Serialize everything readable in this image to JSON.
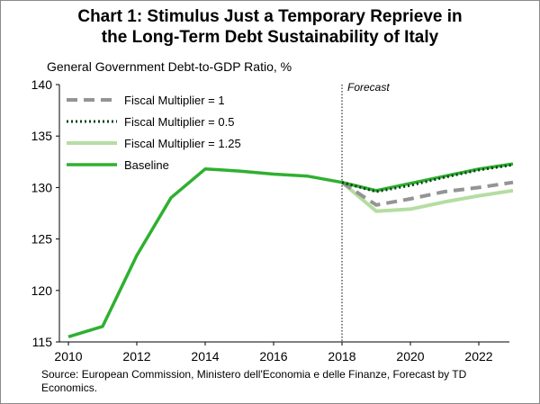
{
  "chart_data": {
    "type": "line",
    "title_line1": "Chart 1: Stimulus Just a Temporary Reprieve in",
    "title_line2": "the Long-Term Debt Sustainability of Italy",
    "ylabel": "General Government Debt-to-GDP Ratio, %",
    "xlabel": "",
    "ylim": [
      115,
      140
    ],
    "xlim": [
      2010,
      2023
    ],
    "yticks": [
      "115",
      "120",
      "125",
      "130",
      "135",
      "140"
    ],
    "xticks": [
      "2010",
      "2012",
      "2014",
      "2016",
      "2018",
      "2020",
      "2022"
    ],
    "grid": false,
    "legend_placement": "top-left",
    "annotation": {
      "label": "Forecast",
      "x": 2018
    },
    "series": [
      {
        "name": "Fiscal Multiplier = 1",
        "color": "#949494",
        "style": "dashed",
        "x": [
          2018,
          2019,
          2020,
          2021,
          2022,
          2023
        ],
        "values": [
          130.5,
          128.3,
          128.9,
          129.6,
          130.0,
          130.5
        ]
      },
      {
        "name": "Fiscal Multiplier = 0.5",
        "color": "#0d3f1d",
        "style": "dotted",
        "x": [
          2018,
          2019,
          2020,
          2021,
          2022,
          2023
        ],
        "values": [
          130.5,
          129.6,
          130.2,
          131.0,
          131.7,
          132.2
        ]
      },
      {
        "name": "Fiscal Multiplier = 1.25",
        "color": "#b5dda2",
        "style": "solid",
        "x": [
          2018,
          2019,
          2020,
          2021,
          2022,
          2023
        ],
        "values": [
          130.5,
          127.7,
          127.9,
          128.6,
          129.2,
          129.7
        ]
      },
      {
        "name": "Baseline",
        "color": "#2fb02f",
        "style": "solid",
        "x": [
          2010,
          2011,
          2012,
          2013,
          2014,
          2015,
          2016,
          2017,
          2018,
          2019,
          2020,
          2021,
          2022,
          2023
        ],
        "values": [
          115.5,
          116.5,
          123.4,
          129.0,
          131.8,
          131.6,
          131.3,
          131.1,
          130.5,
          129.7,
          130.4,
          131.1,
          131.8,
          132.3
        ]
      }
    ]
  },
  "source": "Source: European Commission, Ministero dell'Economia e delle Finanze, Forecast by TD Economics."
}
